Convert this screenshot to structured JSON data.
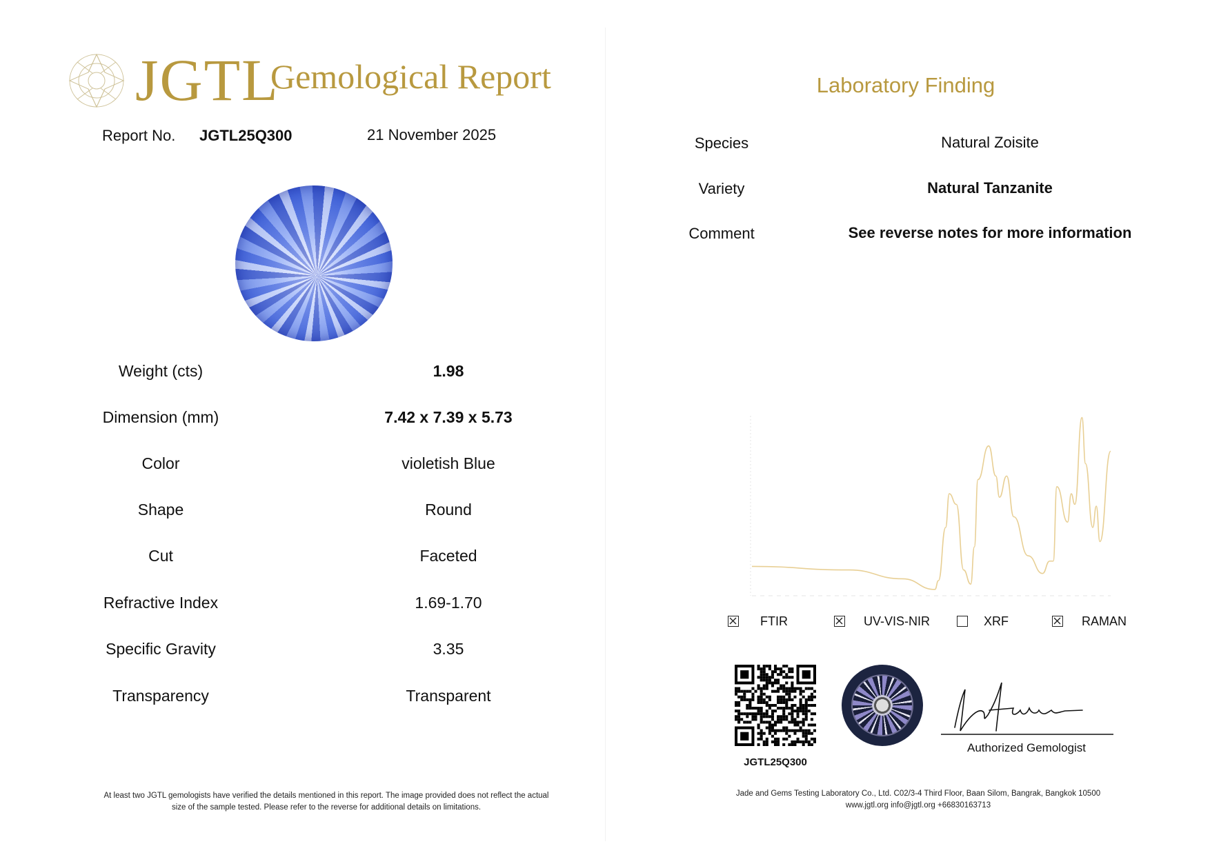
{
  "header": {
    "logo_text": "JGTL",
    "title": "Gemological Report",
    "report_no_label": "Report No.",
    "report_no": "JGTL25Q300",
    "date": "21 November 2025"
  },
  "details": [
    {
      "label": "Weight (cts)",
      "value": "1.98",
      "bold": true
    },
    {
      "label": "Dimension (mm)",
      "value": "7.42 x 7.39 x 5.73",
      "bold": true
    },
    {
      "label": "Color",
      "value": "violetish Blue",
      "bold": false
    },
    {
      "label": "Shape",
      "value": "Round",
      "bold": false
    },
    {
      "label": "Cut",
      "value": "Faceted",
      "bold": false
    },
    {
      "label": "Refractive Index",
      "value": "1.69-1.70",
      "bold": false
    },
    {
      "label": "Specific Gravity",
      "value": "3.35",
      "bold": false
    },
    {
      "label": "Transparency",
      "value": "Transparent",
      "bold": false
    }
  ],
  "left_footer": {
    "line1": "At least two JGTL gemologists have verified the details mentioned in this report. The image provided does not reflect the actual",
    "line2": "size of the sample tested. Please refer to the reverse for additional details on limitations."
  },
  "findings": {
    "title": "Laboratory Finding",
    "rows": [
      {
        "label": "Species",
        "value": "Natural Zoisite",
        "bold": false
      },
      {
        "label": "Variety",
        "value": "Natural Tanzanite",
        "bold": true
      },
      {
        "label": "Comment",
        "value": "See reverse notes for more information",
        "bold": true
      }
    ]
  },
  "chart_data": {
    "type": "line",
    "title": "",
    "xlabel": "",
    "ylabel": "",
    "grid": false,
    "line_color": "#e8cf94",
    "points": [
      [
        0,
        15
      ],
      [
        27,
        13
      ],
      [
        42,
        8
      ],
      [
        51,
        2
      ],
      [
        52,
        7
      ],
      [
        54,
        37
      ],
      [
        55,
        56
      ],
      [
        57,
        50
      ],
      [
        59,
        13
      ],
      [
        61,
        5
      ],
      [
        62,
        26
      ],
      [
        63,
        64
      ],
      [
        66,
        83
      ],
      [
        68,
        66
      ],
      [
        69,
        54
      ],
      [
        71,
        66
      ],
      [
        73,
        43
      ],
      [
        77,
        21
      ],
      [
        81,
        11
      ],
      [
        83,
        18
      ],
      [
        84,
        18
      ],
      [
        85,
        60
      ],
      [
        88,
        40
      ],
      [
        89,
        56
      ],
      [
        90,
        50
      ],
      [
        92,
        99
      ],
      [
        93,
        73
      ],
      [
        95,
        37
      ],
      [
        96,
        49
      ],
      [
        97,
        29
      ],
      [
        100,
        80
      ]
    ]
  },
  "methods": [
    {
      "label": "FTIR",
      "checked": true
    },
    {
      "label": "UV-VIS-NIR",
      "checked": true
    },
    {
      "label": "XRF",
      "checked": false
    },
    {
      "label": "RAMAN",
      "checked": true
    }
  ],
  "qr_code_label": "JGTL25Q300",
  "signature_label": "Authorized Gemologist",
  "right_footer": {
    "line1": "Jade and Gems Testing Laboratory Co., Ltd. C02/3-4 Third Floor, Baan Silom, Bangrak, Bangkok 10500",
    "line2": "www.jgtl.org  info@jgtl.org   +66830163713"
  },
  "colors": {
    "brand_gold": "#b8993f",
    "gem_blue": "#4b6fe0"
  }
}
